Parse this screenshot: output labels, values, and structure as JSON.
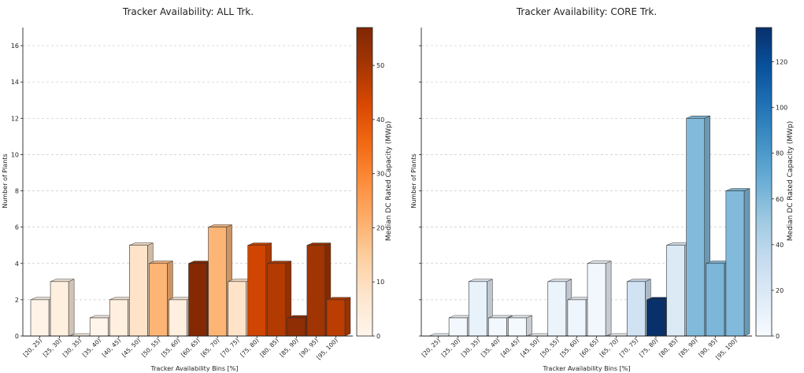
{
  "chart_data": [
    {
      "type": "bar",
      "title": "Tracker Availability: ALL Trk.",
      "xlabel": "Tracker Availability Bins [%]",
      "ylabel": "Number of Plants",
      "ylim": [
        0,
        17
      ],
      "yticks": [
        0,
        2,
        4,
        6,
        8,
        10,
        12,
        14,
        16
      ],
      "grid": "horizontal-dashed",
      "categories": [
        "[20, 25)",
        "[25, 30)",
        "[30, 35)",
        "[35, 40)",
        "[40, 45)",
        "[45, 50)",
        "[50, 55)",
        "[55, 60)",
        "[60, 65)",
        "[65, 70)",
        "[70, 75)",
        "[75, 80)",
        "[80, 85)",
        "[85, 90)",
        "[90, 95)",
        "[95, 100)"
      ],
      "values": [
        2,
        3,
        0,
        1,
        2,
        5,
        4,
        2,
        4,
        6,
        3,
        5,
        4,
        1,
        5,
        2
      ],
      "color_values": [
        1,
        3,
        0,
        0,
        3,
        8,
        20,
        3,
        56,
        20,
        8,
        44,
        48,
        54,
        51,
        47
      ],
      "colorbar": {
        "label": "Median DC Rated Capacity (MWp)",
        "range": [
          0,
          57
        ],
        "ticks": [
          0,
          10,
          20,
          30,
          40,
          50
        ],
        "colormap": "Oranges",
        "stops": [
          "#fff5eb",
          "#fee6ce",
          "#fdd0a2",
          "#fdae6b",
          "#fd8d3c",
          "#f16913",
          "#d94801",
          "#a63603",
          "#7f2704"
        ]
      }
    },
    {
      "type": "bar",
      "title": "Tracker Availability: CORE Trk.",
      "xlabel": "Tracker Availability Bins [%]",
      "ylabel": "Number of Plants",
      "ylim": [
        0,
        17
      ],
      "yticks": [
        0,
        2,
        4,
        6,
        8,
        10,
        12,
        14,
        16
      ],
      "grid": "horizontal-dashed",
      "categories": [
        "[20, 25)",
        "[25, 30)",
        "[30, 35)",
        "[35, 40)",
        "[40, 45)",
        "[45, 50)",
        "[50, 55)",
        "[55, 60)",
        "[60, 65)",
        "[65, 70)",
        "[70, 75)",
        "[75, 80)",
        "[80, 85)",
        "[85, 90)",
        "[90, 95)",
        "[95, 100)"
      ],
      "values": [
        0,
        1,
        3,
        1,
        1,
        0,
        3,
        2,
        4,
        0,
        3,
        2,
        5,
        12,
        4,
        8
      ],
      "color_values": [
        0,
        3,
        10,
        3,
        2,
        0,
        8,
        6,
        4,
        0,
        26,
        135,
        18,
        60,
        62,
        60
      ],
      "colorbar": {
        "label": "Median DC Rated Capacity (MWp)",
        "range": [
          0,
          135
        ],
        "ticks": [
          0,
          20,
          40,
          60,
          80,
          100,
          120
        ],
        "colormap": "Blues",
        "stops": [
          "#f7fbff",
          "#deebf7",
          "#c6dbef",
          "#9ecae1",
          "#6baed6",
          "#4292c6",
          "#2171b5",
          "#08519c",
          "#08306b"
        ]
      }
    }
  ]
}
